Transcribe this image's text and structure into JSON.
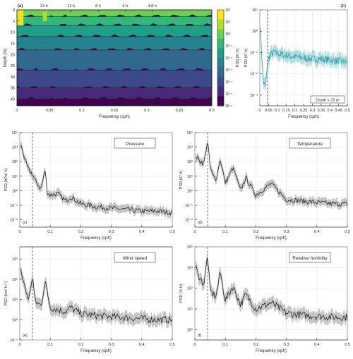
{
  "chart_data": [
    {
      "panel": "(a)",
      "type": "heatmap",
      "xlabel": "Frequency (cph)",
      "ylabel": "Depth (m)",
      "xlim": [
        0,
        0.3
      ],
      "ylim": [
        0,
        43
      ],
      "x_ticks": [
        "0",
        "0.05",
        "0.1",
        "0.15",
        "0.2",
        "0.25",
        "0.3"
      ],
      "y_ticks": [
        "0",
        "5",
        "10",
        "15",
        "20",
        "25",
        "30",
        "35",
        "40"
      ],
      "top_ticks": [
        {
          "label": "24 h",
          "x": 0.0417
        },
        {
          "label": "12 h",
          "x": 0.0833
        },
        {
          "label": "8 h",
          "x": 0.125
        },
        {
          "label": "6 h",
          "x": 0.1667
        },
        {
          "label": "4.8 h",
          "x": 0.2083
        }
      ],
      "colorbar": {
        "label": "PSD (K² h)",
        "scale": "log",
        "ticks": [
          "10²",
          "10¹",
          "10⁰",
          "10⁻¹",
          "10⁻²",
          "10⁻³",
          "10⁻⁴",
          "10⁻⁵",
          "10⁻⁶"
        ]
      },
      "levels": [
        {
          "depth_bottom": 3,
          "log10_psd": 0.5
        },
        {
          "depth_bottom": 7,
          "log10_psd": -0.5
        },
        {
          "depth_bottom": 12,
          "log10_psd": -1.5
        },
        {
          "depth_bottom": 18,
          "log10_psd": -2.5
        },
        {
          "depth_bottom": 27,
          "log10_psd": -3.3
        },
        {
          "depth_bottom": 35,
          "log10_psd": -4.2
        },
        {
          "depth_bottom": 40,
          "log10_psd": -5.0
        },
        {
          "depth_bottom": 43,
          "log10_psd": -5.7
        }
      ]
    },
    {
      "panel": "(b)",
      "type": "line",
      "xlabel": "Frequency (cph)",
      "ylabel": "PSD (K² h)",
      "annotation": "Depth = 15 m",
      "xlim": [
        0,
        0.5
      ],
      "ylim": [
        -3.5,
        1
      ],
      "yscale": "log",
      "x_ticks": [
        "0",
        "0.05",
        "0.1",
        "0.15",
        "0.2",
        "0.25",
        "0.3",
        "0.35",
        "0.4",
        "0.45",
        "0.5"
      ],
      "y_ticks": [
        {
          "label": "10¹",
          "v": 1
        },
        {
          "label": "10⁰",
          "v": 0
        },
        {
          "label": "10⁻¹",
          "v": -1
        },
        {
          "label": "10⁻²",
          "v": -2
        },
        {
          "label": "10⁻³",
          "v": -3
        }
      ],
      "dashed_x": 0.0417,
      "color": "#2a9aa6",
      "x": [
        0.003,
        0.01,
        0.02,
        0.03,
        0.04,
        0.05,
        0.06,
        0.08,
        0.1,
        0.13,
        0.16,
        0.2,
        0.25,
        0.3,
        0.35,
        0.4,
        0.45,
        0.5
      ],
      "log10_y": [
        0.3,
        -1.0,
        -2.4,
        -2.6,
        -2.0,
        -1.3,
        -1.1,
        -1.0,
        -1.05,
        -1.1,
        -1.15,
        -1.2,
        -1.25,
        -1.3,
        -1.3,
        -1.35,
        -1.4,
        -1.45
      ]
    },
    {
      "panel": "(c)",
      "type": "line",
      "label_text": "Pressure",
      "xlabel": "Frequency (cph)",
      "ylabel": "PSD (hPa² h)",
      "xlim": [
        0,
        0.5
      ],
      "ylim": [
        -2.5,
        4
      ],
      "yscale": "log",
      "x_ticks": [
        "0",
        "0.1",
        "0.2",
        "0.3",
        "0.4",
        "0.5"
      ],
      "y_ticks": [
        {
          "label": "10⁴",
          "v": 4
        },
        {
          "label": "10³",
          "v": 3
        },
        {
          "label": "10²",
          "v": 2
        },
        {
          "label": "10¹",
          "v": 1
        },
        {
          "label": "10⁰",
          "v": 0
        },
        {
          "label": "10⁻¹",
          "v": -1
        },
        {
          "label": "10⁻²",
          "v": -2
        }
      ],
      "dashed_x": 0.0417,
      "corner_label": "(c)",
      "x": [
        0.003,
        0.01,
        0.02,
        0.03,
        0.04,
        0.05,
        0.06,
        0.07,
        0.083,
        0.09,
        0.1,
        0.125,
        0.15,
        0.167,
        0.2,
        0.25,
        0.3,
        0.35,
        0.4,
        0.45,
        0.5
      ],
      "log10_y": [
        3.2,
        2.7,
        1.9,
        1.4,
        1.2,
        0.7,
        0.4,
        0.1,
        1.5,
        -0.1,
        -0.3,
        -0.2,
        -0.7,
        -0.4,
        -0.9,
        -1.1,
        -1.2,
        -1.3,
        -1.4,
        -1.4,
        -1.5
      ]
    },
    {
      "panel": "(d)",
      "type": "line",
      "label_text": "Temperature",
      "xlabel": "Frequency (cph)",
      "ylabel": "PSD (K² h)",
      "xlim": [
        0,
        0.5
      ],
      "ylim": [
        -2.5,
        4
      ],
      "yscale": "log",
      "x_ticks": [
        "0",
        "0.1",
        "0.2",
        "0.3",
        "0.4",
        "0.5"
      ],
      "y_ticks": [
        {
          "label": "10⁴",
          "v": 4
        },
        {
          "label": "10³",
          "v": 3
        },
        {
          "label": "10²",
          "v": 2
        },
        {
          "label": "10¹",
          "v": 1
        },
        {
          "label": "10⁰",
          "v": 0
        },
        {
          "label": "10⁻¹",
          "v": -1
        },
        {
          "label": "10⁻²",
          "v": -2
        }
      ],
      "dashed_x": 0.0417,
      "corner_label": "(d)",
      "x": [
        0.003,
        0.01,
        0.02,
        0.03,
        0.0417,
        0.05,
        0.06,
        0.07,
        0.083,
        0.1,
        0.125,
        0.15,
        0.167,
        0.2,
        0.25,
        0.3,
        0.35,
        0.4,
        0.45,
        0.5
      ],
      "log10_y": [
        2.4,
        2.2,
        2.0,
        1.9,
        3.5,
        1.6,
        1.0,
        0.8,
        2.2,
        0.5,
        1.6,
        0.0,
        0.9,
        -0.3,
        0.5,
        -0.6,
        -0.7,
        -0.8,
        -0.9,
        -0.9
      ]
    },
    {
      "panel": "(e)",
      "type": "line",
      "label_text": "Wind speed",
      "xlabel": "Frequency (cph)",
      "ylabel": "PSD (km² h⁻¹)",
      "xlim": [
        0,
        0.5
      ],
      "ylim": [
        -1,
        3.6
      ],
      "yscale": "log",
      "x_ticks": [
        "0",
        "0.1",
        "0.2",
        "0.3",
        "0.4",
        "0.5"
      ],
      "y_ticks": [
        {
          "label": "10³",
          "v": 3
        },
        {
          "label": "10²",
          "v": 2
        },
        {
          "label": "10¹",
          "v": 1
        },
        {
          "label": "10⁰",
          "v": 0
        },
        {
          "label": "10⁻¹",
          "v": -1
        }
      ],
      "dashed_x": 0.0417,
      "corner_label": "(e)",
      "x": [
        0.003,
        0.01,
        0.02,
        0.03,
        0.0417,
        0.05,
        0.06,
        0.07,
        0.083,
        0.1,
        0.125,
        0.15,
        0.167,
        0.2,
        0.25,
        0.3,
        0.35,
        0.4,
        0.45,
        0.5
      ],
      "log10_y": [
        2.5,
        2.0,
        1.4,
        1.0,
        2.2,
        0.9,
        0.8,
        0.7,
        1.9,
        0.6,
        0.5,
        0.4,
        0.6,
        0.3,
        0.2,
        0.15,
        0.1,
        0.05,
        0.0,
        0.0
      ]
    },
    {
      "panel": "(f)",
      "type": "line",
      "label_text": "Relative humidity",
      "xlabel": "Frequency (cph)",
      "ylabel": "PSD (% h)",
      "xlim": [
        0,
        0.5
      ],
      "ylim": [
        -0.5,
        4
      ],
      "yscale": "log",
      "x_ticks": [
        "0",
        "0.1",
        "0.2",
        "0.3",
        "0.4",
        "0.5"
      ],
      "y_ticks": [
        {
          "label": "10⁴",
          "v": 4
        },
        {
          "label": "10³",
          "v": 3
        },
        {
          "label": "10²",
          "v": 2
        },
        {
          "label": "10¹",
          "v": 1
        },
        {
          "label": "10⁰",
          "v": 0
        }
      ],
      "dashed_x": 0.0417,
      "corner_label": "(f)",
      "x": [
        0.003,
        0.01,
        0.02,
        0.03,
        0.0417,
        0.05,
        0.06,
        0.07,
        0.083,
        0.1,
        0.125,
        0.15,
        0.167,
        0.2,
        0.25,
        0.3,
        0.35,
        0.4,
        0.45,
        0.5
      ],
      "log10_y": [
        3.0,
        2.7,
        2.4,
        2.2,
        3.6,
        1.9,
        1.7,
        1.6,
        2.8,
        1.4,
        2.1,
        1.2,
        1.7,
        1.0,
        1.3,
        0.8,
        0.7,
        0.65,
        0.6,
        0.6
      ]
    }
  ]
}
